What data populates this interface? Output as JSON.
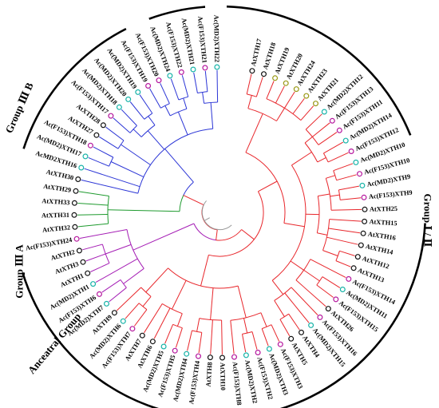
{
  "colors": {
    "red": "#e8262b",
    "blue": "#2b35d6",
    "green": "#1e9a2e",
    "purple": "#a51eb5",
    "gray": "#9a9a9a",
    "marker_black": "#111111",
    "marker_cyan": "#17b3a8",
    "marker_magenta": "#b5179e",
    "marker_olive": "#9a9a16",
    "arc": "#000000"
  },
  "groups": [
    {
      "label": "Group Ⅰ / Ⅱ",
      "start": 3,
      "end": 163
    },
    {
      "label": "Anceatral Group",
      "start": 198,
      "end": 243
    },
    {
      "label": "Group Ⅲ A",
      "start": 250,
      "end": 266
    },
    {
      "label": "Group Ⅲ B",
      "start": 272,
      "end": 338
    }
  ],
  "leaves": [
    {
      "name": "AtXTH17",
      "marker": "black"
    },
    {
      "name": "AtXTH18",
      "marker": "black"
    },
    {
      "name": "AtXTH19",
      "marker": "olive"
    },
    {
      "name": "AtXTH20",
      "marker": "olive"
    },
    {
      "name": "AtXTH24",
      "marker": "olive"
    },
    {
      "name": "AtXTH23",
      "marker": "olive"
    },
    {
      "name": "AtXTH21",
      "marker": "olive"
    },
    {
      "name": "Ac(MD2)XTH12",
      "marker": "cyan"
    },
    {
      "name": "Ac(F153)XTH13",
      "marker": "magenta"
    },
    {
      "name": "Ac(F153)XTH11",
      "marker": "magenta"
    },
    {
      "name": "Ac(MD2)XTH14",
      "marker": "cyan"
    },
    {
      "name": "Ac(F153)XTH12",
      "marker": "magenta"
    },
    {
      "name": "Ac(MD2)XTH10",
      "marker": "cyan"
    },
    {
      "name": "Ac(F153)XTH10",
      "marker": "magenta"
    },
    {
      "name": "Ac(MD2)XTH9",
      "marker": "cyan"
    },
    {
      "name": "Ac(F153)XTH9",
      "marker": "magenta"
    },
    {
      "name": "AtXTH25",
      "marker": "black"
    },
    {
      "name": "AtXTH15",
      "marker": "black"
    },
    {
      "name": "AtXTH16",
      "marker": "black"
    },
    {
      "name": "AtXTH14",
      "marker": "black"
    },
    {
      "name": "AtXTH12",
      "marker": "black"
    },
    {
      "name": "AtXTH13",
      "marker": "black"
    },
    {
      "name": "Ac(F153)XTH14",
      "marker": "magenta"
    },
    {
      "name": "Ac(MD2)XTH11",
      "marker": "cyan"
    },
    {
      "name": "Ac(F153)XTH15",
      "marker": "magenta"
    },
    {
      "name": "AtXTH26",
      "marker": "black"
    },
    {
      "name": "Ac(F153)XTH16",
      "marker": "magenta"
    },
    {
      "name": "Ac(MD2)XTH15",
      "marker": "cyan"
    },
    {
      "name": "AtXTH4",
      "marker": "black"
    },
    {
      "name": "AtXTH5",
      "marker": "black"
    },
    {
      "name": "Ac(F153)XTH3",
      "marker": "magenta"
    },
    {
      "name": "Ac(MD2)XTH3",
      "marker": "cyan"
    },
    {
      "name": "Ac(F153)XTH2",
      "marker": "magenta"
    },
    {
      "name": "Ac(MD2)XTH2",
      "marker": "cyan"
    },
    {
      "name": "Ac(F153)XTH8",
      "marker": "magenta"
    },
    {
      "name": "AtXTH10",
      "marker": "black"
    },
    {
      "name": "AtXTH8",
      "marker": "black"
    },
    {
      "name": "Ac(F153)XTH4",
      "marker": "magenta"
    },
    {
      "name": "Ac(MD2)XTH4",
      "marker": "cyan"
    },
    {
      "name": "Ac(F153)XTH5",
      "marker": "magenta"
    },
    {
      "name": "Ac(MD2)XTH5",
      "marker": "cyan"
    },
    {
      "name": "AtXTH6",
      "marker": "black"
    },
    {
      "name": "AtXTH7",
      "marker": "black"
    },
    {
      "name": "Ac(F153)XTH7",
      "marker": "magenta"
    },
    {
      "name": "Ac(MD2)XTH6",
      "marker": "cyan"
    },
    {
      "name": "AtXTH9",
      "marker": "black"
    },
    {
      "name": "Ac(MD2)XTH7",
      "marker": "cyan"
    },
    {
      "name": "Ac(F153)XTH6",
      "marker": "magenta"
    },
    {
      "name": "Ac(MD2)XTH1",
      "marker": "cyan"
    },
    {
      "name": "AtXTH1",
      "marker": "black"
    },
    {
      "name": "AtXTH3",
      "marker": "black"
    },
    {
      "name": "AtXTH2",
      "marker": "black"
    },
    {
      "name": "Ac(F153)XTH24",
      "marker": "magenta"
    },
    {
      "name": "AtXTH32",
      "marker": "black"
    },
    {
      "name": "AtXTH31",
      "marker": "black"
    },
    {
      "name": "AtXTH33",
      "marker": "black"
    },
    {
      "name": "AtXTH29",
      "marker": "black"
    },
    {
      "name": "AtXTH30",
      "marker": "black"
    },
    {
      "name": "AcMD2XTH16",
      "marker": "cyan"
    },
    {
      "name": "Ac(MD2)XTH17",
      "marker": "cyan"
    },
    {
      "name": "Ac(F153)XTH18",
      "marker": "magenta"
    },
    {
      "name": "AtXTH27",
      "marker": "black"
    },
    {
      "name": "AtXTH28",
      "marker": "black"
    },
    {
      "name": "Ac(F153)XTH17",
      "marker": "magenta"
    },
    {
      "name": "Ac(MD2)XTH18",
      "marker": "cyan"
    },
    {
      "name": "Ac(MD2)XTH20",
      "marker": "cyan"
    },
    {
      "name": "Ac(MD2)XTH19",
      "marker": "cyan"
    },
    {
      "name": "Ac(F153)XTH19",
      "marker": "magenta"
    },
    {
      "name": "Ac(F153)XTH20",
      "marker": "magenta"
    },
    {
      "name": "Ac(MD2)XTH24",
      "marker": "cyan"
    },
    {
      "name": "Ac(F153)XTH22",
      "marker": "magenta"
    },
    {
      "name": "Ac(MD2)XTH21",
      "marker": "cyan"
    },
    {
      "name": "Ac(F153)XTH21",
      "marker": "magenta"
    },
    {
      "name": "Ac(MD2)XTH22",
      "marker": "cyan"
    }
  ]
}
